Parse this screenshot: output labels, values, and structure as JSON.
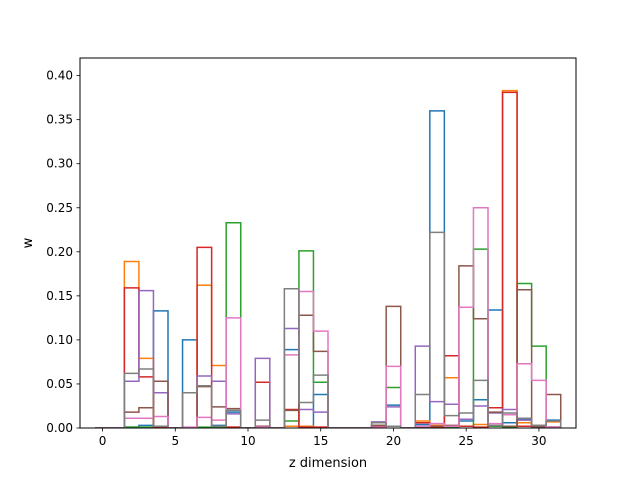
{
  "chart_data": {
    "type": "step",
    "xlabel": "z dimension",
    "ylabel": "w",
    "xlim": [
      -1.55,
      32.55
    ],
    "ylim": [
      0,
      0.42
    ],
    "xticks": [
      0,
      5,
      10,
      15,
      20,
      25,
      30
    ],
    "yticks": [
      0.0,
      0.05,
      0.1,
      0.15,
      0.2,
      0.25,
      0.3,
      0.35,
      0.4
    ],
    "grid": false,
    "legend": "none",
    "colors": [
      "#1f77b4",
      "#ff7f0e",
      "#2ca02c",
      "#d62728",
      "#9467bd",
      "#8c564b",
      "#e377c2",
      "#7f7f7f"
    ],
    "x": [
      0,
      1,
      2,
      3,
      4,
      5,
      6,
      7,
      8,
      9,
      10,
      11,
      12,
      13,
      14,
      15,
      16,
      17,
      18,
      19,
      20,
      21,
      22,
      23,
      24,
      25,
      26,
      27,
      28,
      29,
      30,
      31
    ],
    "series": [
      {
        "values": [
          0,
          0,
          0.001,
          0.003,
          0.133,
          0,
          0.1,
          0,
          0.003,
          0.018,
          0,
          0,
          0,
          0.089,
          0.002,
          0.038,
          0,
          0,
          0,
          0.002,
          0.026,
          0,
          0.004,
          0.36,
          0.001,
          0.008,
          0.032,
          0.134,
          0.006,
          0.01,
          0.002,
          0.009
        ]
      },
      {
        "values": [
          0,
          0,
          0.189,
          0.079,
          0.001,
          0,
          0,
          0.162,
          0.071,
          0.001,
          0,
          0,
          0,
          0.002,
          0.002,
          0.001,
          0,
          0,
          0,
          0.001,
          0.002,
          0,
          0.008,
          0.003,
          0.057,
          0.002,
          0.004,
          0.023,
          0.383,
          0.006,
          0.003,
          0.007
        ]
      },
      {
        "values": [
          0,
          0,
          0.001,
          0.001,
          0,
          0,
          0,
          0.001,
          0.001,
          0.233,
          0,
          0,
          0,
          0.008,
          0.201,
          0.052,
          0,
          0,
          0,
          0.003,
          0.046,
          0,
          0.001,
          0.001,
          0.001,
          0.002,
          0.203,
          0.002,
          0.001,
          0.164,
          0.093,
          0.001
        ]
      },
      {
        "values": [
          0,
          0,
          0.159,
          0.058,
          0.001,
          0,
          0,
          0.205,
          0.002,
          0.001,
          0,
          0.052,
          0,
          0.021,
          0.001,
          0.001,
          0,
          0,
          0,
          0.002,
          0.002,
          0,
          0.006,
          0.001,
          0.082,
          0.002,
          0.001,
          0.023,
          0.381,
          0.002,
          0.001,
          0.001
        ]
      },
      {
        "values": [
          0,
          0,
          0.053,
          0.156,
          0.04,
          0,
          0,
          0.059,
          0.053,
          0.016,
          0,
          0.079,
          0,
          0.113,
          0.021,
          0.018,
          0,
          0,
          0,
          0.007,
          0.024,
          0,
          0.093,
          0.03,
          0.027,
          0.01,
          0.025,
          0.017,
          0.021,
          0.009,
          0.001,
          0.001
        ]
      },
      {
        "values": [
          0,
          0,
          0.018,
          0.023,
          0.053,
          0,
          0,
          0.047,
          0.024,
          0.022,
          0,
          0.002,
          0,
          0.02,
          0.128,
          0.087,
          0,
          0,
          0,
          0.003,
          0.138,
          0,
          0.001,
          0.002,
          0.003,
          0.184,
          0.124,
          0.018,
          0.002,
          0.157,
          0.001,
          0.038
        ]
      },
      {
        "values": [
          0,
          0,
          0.011,
          0.011,
          0.013,
          0,
          0.001,
          0.012,
          0.009,
          0.125,
          0,
          0.001,
          0,
          0.083,
          0.155,
          0.11,
          0,
          0,
          0,
          0.001,
          0.07,
          0,
          0.002,
          0.005,
          0.002,
          0.137,
          0.25,
          0.005,
          0.015,
          0.073,
          0.054,
          0.001
        ]
      },
      {
        "values": [
          0,
          0,
          0.062,
          0.067,
          0.002,
          0,
          0.04,
          0.048,
          0.002,
          0.02,
          0,
          0.009,
          0,
          0.158,
          0.029,
          0.06,
          0,
          0,
          0,
          0.006,
          0.002,
          0,
          0.038,
          0.222,
          0.014,
          0.017,
          0.054,
          0.003,
          0.017,
          0.011,
          0.003,
          0.008
        ]
      }
    ]
  }
}
